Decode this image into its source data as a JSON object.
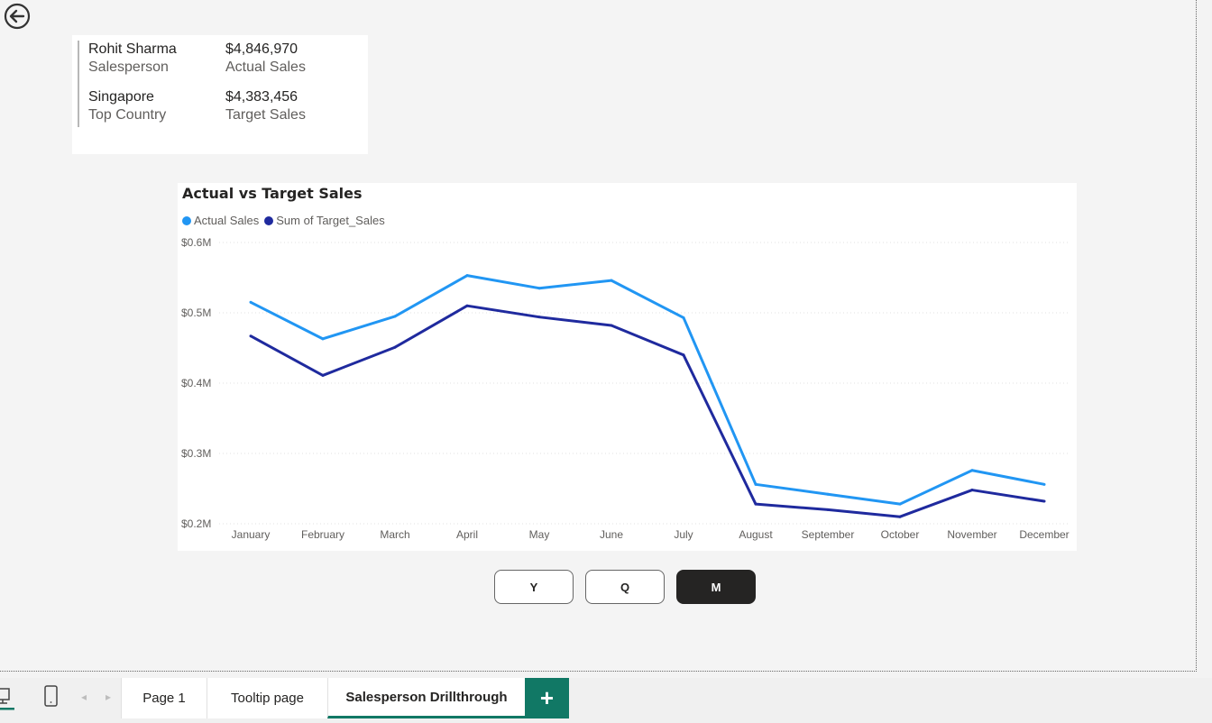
{
  "kpi": {
    "salesperson_value": "Rohit Sharma",
    "salesperson_label": "Salesperson",
    "actual_value": "$4,846,970",
    "actual_label": "Actual Sales",
    "country_value": "Singapore",
    "country_label": "Top Country",
    "target_value": "$4,383,456",
    "target_label": "Target Sales"
  },
  "chart": {
    "title": "Actual vs Target Sales",
    "legend": [
      {
        "label": "Actual Sales",
        "color": "#2196f3"
      },
      {
        "label": "Sum of Target_Sales",
        "color": "#1f2a9e"
      }
    ]
  },
  "chart_data": {
    "type": "line",
    "title": "Actual vs Target Sales",
    "x": [
      "January",
      "February",
      "March",
      "April",
      "May",
      "June",
      "July",
      "August",
      "September",
      "October",
      "November",
      "December"
    ],
    "series": [
      {
        "name": "Actual Sales",
        "color": "#2196f3",
        "values": [
          0.515,
          0.463,
          0.495,
          0.553,
          0.535,
          0.546,
          0.493,
          0.256,
          0.242,
          0.228,
          0.276,
          0.256
        ]
      },
      {
        "name": "Sum of Target_Sales",
        "color": "#1f2a9e",
        "values": [
          0.467,
          0.411,
          0.451,
          0.51,
          0.494,
          0.482,
          0.44,
          0.228,
          0.22,
          0.21,
          0.248,
          0.232
        ]
      }
    ],
    "ylim": [
      0.2,
      0.6
    ],
    "yticks": [
      0.2,
      0.3,
      0.4,
      0.5,
      0.6
    ],
    "ytick_labels": [
      "$0.2M",
      "$0.3M",
      "$0.4M",
      "$0.5M",
      "$0.6M"
    ],
    "grid": true,
    "legend_position": "top-left"
  },
  "period_buttons": [
    {
      "label": "Y"
    },
    {
      "label": "Q"
    },
    {
      "label": "M",
      "active": true
    }
  ],
  "tabs": [
    {
      "label": "Page 1"
    },
    {
      "label": "Tooltip page"
    },
    {
      "label": "Salesperson Drillthrough",
      "active": true
    }
  ],
  "add_tab_label": "+"
}
